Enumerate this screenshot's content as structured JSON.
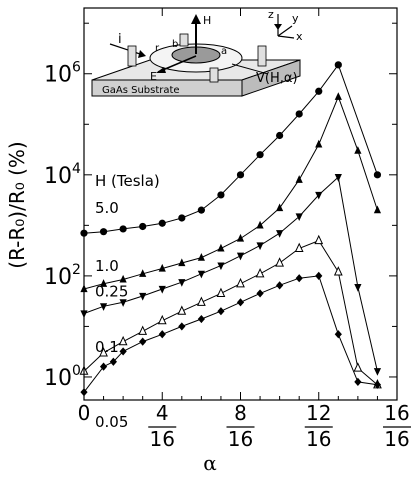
{
  "chart_data": {
    "type": "line",
    "title": "",
    "xlabel": "α",
    "ylabel": "(R-R₀)/R₀ (%)",
    "xscale": "linear",
    "yscale": "log",
    "xlim": [
      0,
      1.0
    ],
    "ylim": [
      0.35,
      20000000
    ],
    "x_ticks": [
      {
        "value": 0,
        "label": "0"
      },
      {
        "value": 0.25,
        "num": "4",
        "den": "16"
      },
      {
        "value": 0.5,
        "num": "8",
        "den": "16"
      },
      {
        "value": 0.75,
        "num": "12",
        "den": "16"
      },
      {
        "value": 1.0,
        "num": "16",
        "den": "16"
      }
    ],
    "y_ticks": [
      {
        "value": 1,
        "base": "10",
        "exp": "0"
      },
      {
        "value": 100,
        "base": "10",
        "exp": "2"
      },
      {
        "value": 10000,
        "base": "10",
        "exp": "4"
      },
      {
        "value": 1000000,
        "base": "10",
        "exp": "6"
      }
    ],
    "legend_title": "H (Tesla)",
    "series": [
      {
        "name": "5.0",
        "marker": "circle",
        "x": [
          0,
          0.0625,
          0.125,
          0.1875,
          0.25,
          0.3125,
          0.375,
          0.4375,
          0.5,
          0.5625,
          0.625,
          0.6875,
          0.75,
          0.8125,
          0.9375
        ],
        "y": [
          700,
          750,
          850,
          950,
          1100,
          1400,
          2000,
          4000,
          10000,
          25000,
          60000,
          160000,
          450000,
          1500000,
          10000
        ]
      },
      {
        "name": "1.0",
        "marker": "triangle-up",
        "x": [
          0,
          0.0625,
          0.125,
          0.1875,
          0.25,
          0.3125,
          0.375,
          0.4375,
          0.5,
          0.5625,
          0.625,
          0.6875,
          0.75,
          0.8125,
          0.875,
          0.9375
        ],
        "y": [
          55,
          70,
          85,
          110,
          140,
          180,
          230,
          350,
          550,
          1000,
          2200,
          8000,
          40000,
          350000,
          30000,
          2000
        ]
      },
      {
        "name": "0.25",
        "marker": "triangle-down",
        "x": [
          0,
          0.0625,
          0.125,
          0.1875,
          0.25,
          0.3125,
          0.375,
          0.4375,
          0.5,
          0.5625,
          0.625,
          0.6875,
          0.75,
          0.8125,
          0.875,
          0.9375
        ],
        "y": [
          18,
          25,
          30,
          40,
          55,
          75,
          110,
          160,
          250,
          400,
          700,
          1500,
          4000,
          9000,
          60,
          1.3
        ]
      },
      {
        "name": "0.1",
        "marker": "triangle-up-open",
        "x": [
          0,
          0.0625,
          0.125,
          0.1875,
          0.25,
          0.3125,
          0.375,
          0.4375,
          0.5,
          0.5625,
          0.625,
          0.6875,
          0.75,
          0.8125,
          0.875,
          0.9375
        ],
        "y": [
          1.3,
          3,
          5,
          8,
          13,
          20,
          30,
          45,
          70,
          110,
          180,
          350,
          500,
          120,
          1.5,
          0.7
        ]
      },
      {
        "name": "0.05",
        "marker": "diamond",
        "x": [
          0,
          0.0625,
          0.0938,
          0.125,
          0.1875,
          0.25,
          0.3125,
          0.375,
          0.4375,
          0.5,
          0.5625,
          0.625,
          0.6875,
          0.75,
          0.8125,
          0.875,
          0.9375
        ],
        "y": [
          0.5,
          1.6,
          2,
          3.2,
          5,
          7,
          10,
          14,
          20,
          30,
          45,
          65,
          90,
          100,
          7,
          0.8,
          0.7
        ]
      }
    ],
    "inset": {
      "label_substrate": "GaAs Substrate",
      "label_voltage": "V(H,α)",
      "label_current": "i",
      "label_field": "H",
      "label_e": "E",
      "label_r": "r",
      "label_b": "b",
      "label_a": "a",
      "axis_z": "z",
      "axis_y": "y",
      "axis_x": "x"
    }
  }
}
